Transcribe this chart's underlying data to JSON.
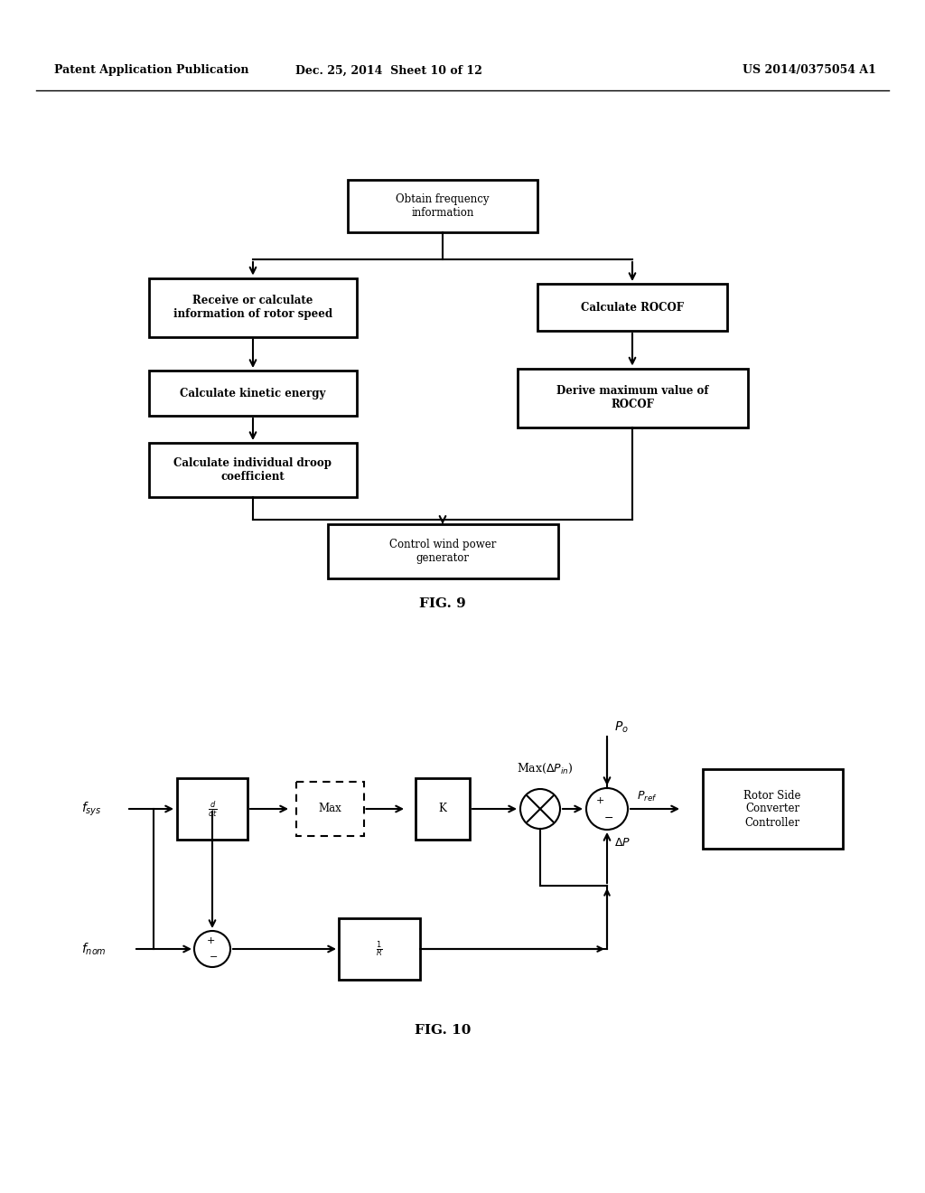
{
  "header_left": "Patent Application Publication",
  "header_mid": "Dec. 25, 2014  Sheet 10 of 12",
  "header_right": "US 2014/0375054 A1",
  "bg_color": "#ffffff"
}
